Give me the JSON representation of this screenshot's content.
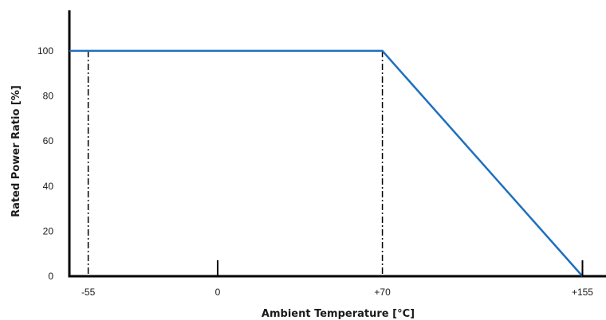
{
  "chart_data": {
    "type": "line",
    "title": "",
    "xlabel": "Ambient Temperature [°C]",
    "ylabel": "Rated Power Ratio [%]",
    "x_tick_labels": [
      {
        "x": -55,
        "label": "-55"
      },
      {
        "x": 0,
        "label": "0"
      },
      {
        "x": 70,
        "label": "+70"
      },
      {
        "x": 155,
        "label": "+155"
      }
    ],
    "y_tick_labels": [
      {
        "y": 0,
        "label": "0"
      },
      {
        "y": 20,
        "label": "20"
      },
      {
        "y": 40,
        "label": "40"
      },
      {
        "y": 60,
        "label": "60"
      },
      {
        "y": 80,
        "label": "80"
      },
      {
        "y": 100,
        "label": "100"
      }
    ],
    "series": [
      {
        "x": [
          -63,
          -55,
          70,
          155
        ],
        "y": [
          100,
          100,
          100,
          0
        ],
        "color": "#1f6fbf"
      }
    ],
    "reference_lines": [
      {
        "x": -55,
        "y_from": 0,
        "y_to": 100,
        "style": "dash-dot"
      },
      {
        "x": 70,
        "y_from": 0,
        "y_to": 100,
        "style": "dash-dot"
      }
    ],
    "xlim": [
      -63,
      165
    ],
    "ylim": [
      0,
      118
    ],
    "grid": false,
    "legend": "none"
  }
}
